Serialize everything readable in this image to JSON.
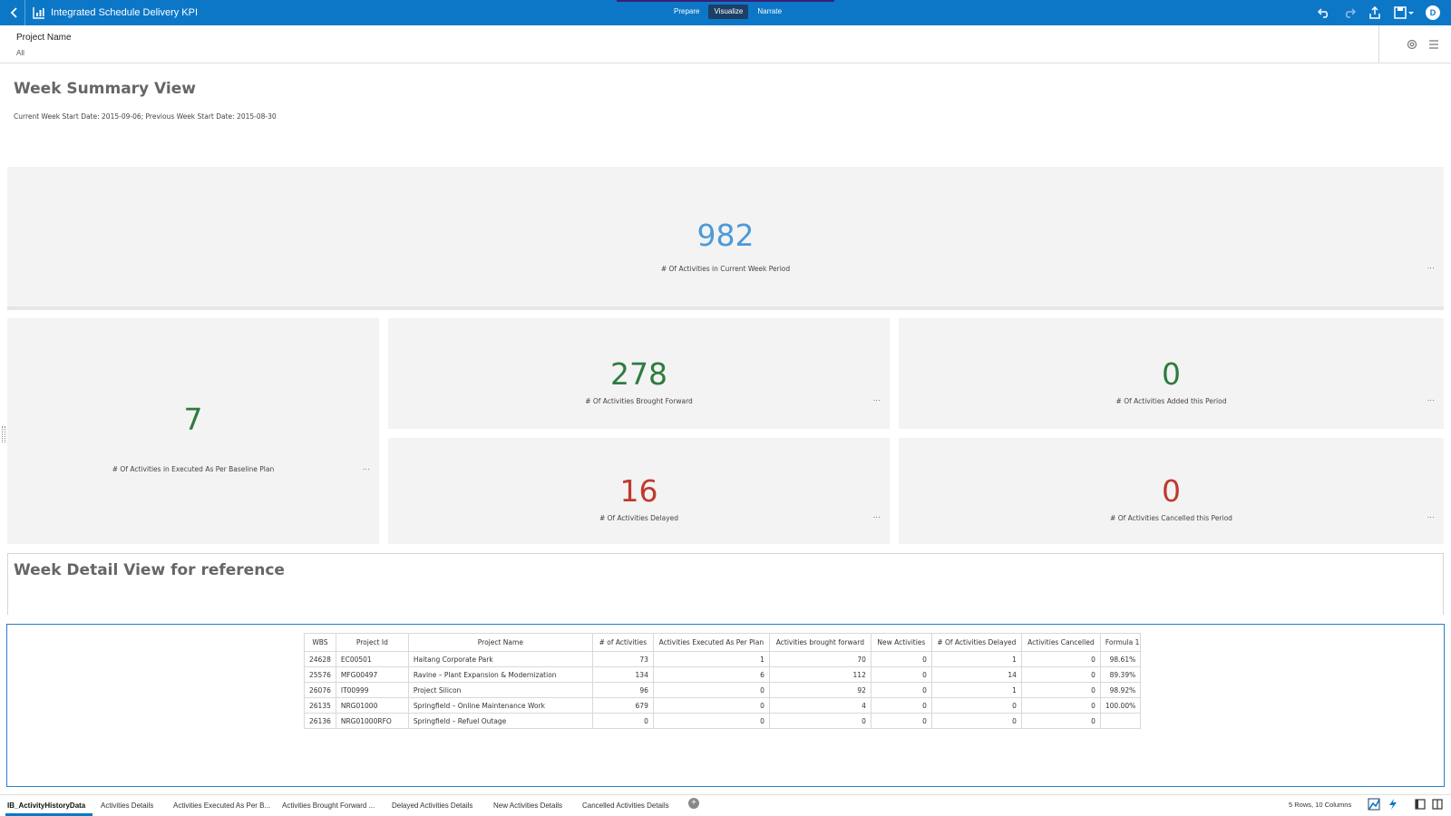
{
  "header": {
    "title": "Integrated Schedule Delivery KPI",
    "modes": [
      "Prepare",
      "Visualize",
      "Narrate"
    ],
    "active_mode": "Visualize",
    "user_initial": "D",
    "brand_color": "#0c77c7"
  },
  "filter": {
    "name": "Project Name",
    "value": "All"
  },
  "summary": {
    "title": "Week Summary View",
    "subtitle": "Current Week Start Date: 2015-09-06; Previous Week Start Date: 2015-08-30"
  },
  "kpis": {
    "current_week": {
      "value": "982",
      "label": "# Of Activities in Current Week Period",
      "color": "#4d9ad8"
    },
    "executed_baseline": {
      "value": "7",
      "label": "# Of Activities in Executed As Per Baseline Plan",
      "color": "#2f7b3f"
    },
    "brought_forward": {
      "value": "278",
      "label": "# Of Activities Brought Forward",
      "color": "#2f7b3f"
    },
    "added": {
      "value": "0",
      "label": "# Of Activities Added this Period",
      "color": "#2f7b3f"
    },
    "delayed": {
      "value": "16",
      "label": "# Of Activities Delayed",
      "color": "#c0392b"
    },
    "cancelled": {
      "value": "0",
      "label": "# Of Activities Cancelled this Period",
      "color": "#c0392b"
    },
    "more_label": "..."
  },
  "detail": {
    "title": "Week Detail View for reference"
  },
  "table": {
    "columns": [
      "WBS",
      "Project Id",
      "Project Name",
      "# of Activities",
      "Activities Executed As Per Plan",
      "Activities brought forward",
      "New Activities",
      "# Of Activities Delayed",
      "Activities Cancelled",
      "Formula 1"
    ],
    "rows": [
      [
        "24628",
        "EC00501",
        "Haitang Corporate Park",
        "73",
        "1",
        "70",
        "0",
        "1",
        "0",
        "98.61%"
      ],
      [
        "25576",
        "MFG00497",
        "Ravine – Plant Expansion & Modernization",
        "134",
        "6",
        "112",
        "0",
        "14",
        "0",
        "89.39%"
      ],
      [
        "26076",
        "IT00999",
        "Project Silicon",
        "96",
        "0",
        "92",
        "0",
        "1",
        "0",
        "98.92%"
      ],
      [
        "26135",
        "NRG01000",
        "Springfield – Online Maintenance Work",
        "679",
        "0",
        "4",
        "0",
        "0",
        "0",
        "100.00%"
      ],
      [
        "26136",
        "NRG01000RFO",
        "Springfield – Refuel Outage",
        "0",
        "0",
        "0",
        "0",
        "0",
        "0",
        ""
      ]
    ]
  },
  "tabs": [
    "IB_ActivityHistoryData",
    "Activities Details",
    "Activities Executed As Per B...",
    "Activities Brought Forward ...",
    "Delayed Activities Details",
    "New Activities Details",
    "Cancelled Activities Details"
  ],
  "active_tab": "IB_ActivityHistoryData",
  "status": {
    "rows_info": "5 Rows, 10 Columns"
  }
}
